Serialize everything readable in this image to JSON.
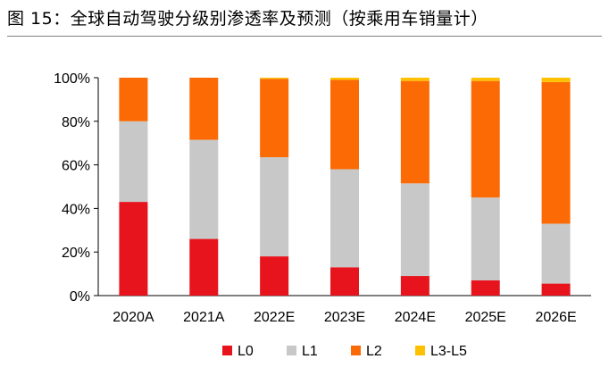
{
  "title": "图 15：全球自动驾驶分级别渗透率及预测（按乘用车销量计）",
  "chart_data": {
    "type": "bar",
    "stacked": true,
    "title": "图 15：全球自动驾驶分级别渗透率及预测（按乘用车销量计）",
    "xlabel": "",
    "ylabel": "",
    "categories": [
      "2020A",
      "2021A",
      "2022E",
      "2023E",
      "2024E",
      "2025E",
      "2026E"
    ],
    "y_ticks": [
      "0%",
      "20%",
      "40%",
      "60%",
      "80%",
      "100%"
    ],
    "ylim": [
      0,
      100
    ],
    "grid": false,
    "legend_position": "bottom",
    "series": [
      {
        "name": "L0",
        "color": "#e8141d",
        "values": [
          43,
          26,
          18,
          13,
          9,
          7,
          5.5
        ]
      },
      {
        "name": "L1",
        "color": "#c8c8c8",
        "values": [
          37,
          45.5,
          45.5,
          45,
          42.5,
          38,
          27.5
        ]
      },
      {
        "name": "L2",
        "color": "#fb6a05",
        "values": [
          20,
          28.5,
          36,
          41,
          47,
          53.5,
          65
        ]
      },
      {
        "name": "L3-L5",
        "color": "#ffc000",
        "values": [
          0,
          0,
          0.5,
          1,
          1.5,
          1.5,
          2
        ]
      }
    ]
  }
}
